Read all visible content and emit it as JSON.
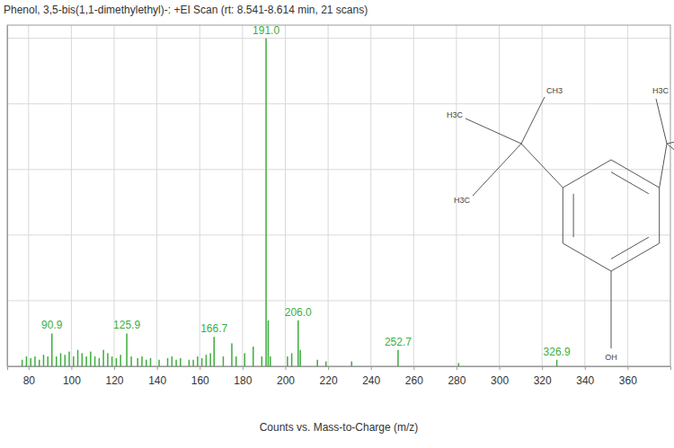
{
  "chart_data": {
    "type": "bar",
    "title": "Phenol, 3,5-bis(1,1-dimethylethyl)-: +EI Scan (rt: 8.541-8.614 min, 21 scans)",
    "x_label": "Counts vs. Mass-to-Charge (m/z)",
    "x": [
      77,
      79,
      81,
      83,
      85,
      87,
      89,
      90.9,
      93,
      95,
      97,
      99,
      101,
      103,
      105,
      107,
      109,
      111,
      113,
      115,
      117,
      119,
      121,
      123,
      125.9,
      128,
      131,
      133,
      135,
      137,
      141,
      145,
      147,
      149,
      151,
      155,
      157,
      159,
      161,
      163,
      165,
      166.7,
      171,
      175,
      177,
      181,
      185,
      189,
      191.0,
      192,
      193,
      201,
      203,
      206.0,
      207,
      215,
      219,
      231,
      252.7,
      281,
      326.9
    ],
    "values": [
      2,
      3,
      2.5,
      3,
      2,
      3.5,
      3,
      10,
      3,
      4,
      3.5,
      4.5,
      3,
      5,
      4,
      3,
      4.5,
      3,
      2.5,
      5,
      4,
      3,
      2.5,
      3.5,
      10,
      3,
      2.5,
      3,
      2,
      2.5,
      2,
      2.5,
      3,
      2,
      2.5,
      2,
      2,
      3,
      2.5,
      3.5,
      4,
      9,
      3,
      7,
      3,
      4,
      6,
      3,
      100,
      14,
      3,
      3,
      4,
      14,
      5,
      2,
      1.5,
      1.5,
      5,
      1,
      2
    ],
    "color": "#3dae3d",
    "xlim": [
      70,
      380
    ],
    "xticks": [
      80,
      100,
      120,
      140,
      160,
      180,
      200,
      220,
      240,
      260,
      280,
      300,
      320,
      340,
      360
    ],
    "ylim": [
      0,
      104
    ],
    "yticks": [
      0,
      20,
      40,
      60,
      80,
      100
    ],
    "grid": true,
    "tick_labels": "x",
    "annotations": [
      {
        "text": "90.9",
        "x": 90.9,
        "y": 10
      },
      {
        "text": "125.9",
        "x": 125.9,
        "y": 10
      },
      {
        "text": "166.7",
        "x": 166.7,
        "y": 9
      },
      {
        "text": "191.0",
        "x": 191.0,
        "y": 100
      },
      {
        "text": "206.0",
        "x": 206.0,
        "y": 14
      },
      {
        "text": "252.7",
        "x": 252.7,
        "y": 5
      },
      {
        "text": "326.9",
        "x": 326.9,
        "y": 2
      }
    ],
    "structure_labels": [
      "H3C",
      "CH3",
      "H3C",
      "H3C",
      "OH"
    ]
  }
}
